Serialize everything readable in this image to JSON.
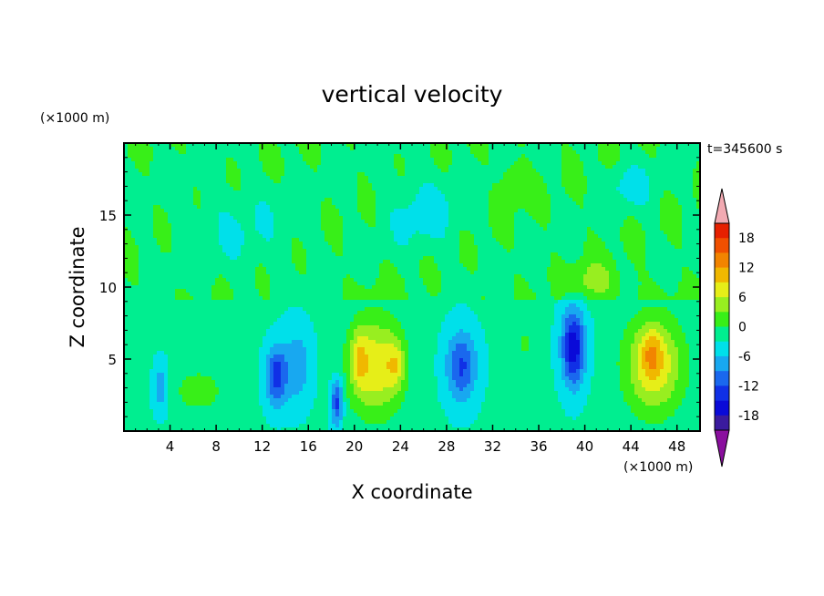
{
  "chart_data": {
    "type": "heatmap",
    "title": "vertical velocity",
    "xlabel": "X coordinate",
    "ylabel": "Z coordinate",
    "x_unit": "(×1000 m)",
    "y_unit": "(×1000 m)",
    "annotation": "t=345600 s",
    "xlim": [
      0,
      50
    ],
    "ylim": [
      0,
      20
    ],
    "x_ticks": [
      4,
      8,
      12,
      16,
      20,
      24,
      28,
      32,
      36,
      40,
      44,
      48
    ],
    "y_ticks": [
      5,
      10,
      15
    ],
    "grid": false,
    "legend": "right",
    "colorbar": {
      "levels": [
        -21,
        -18,
        -15,
        -12,
        -9,
        -6,
        -3,
        0,
        3,
        6,
        9,
        12,
        15,
        18,
        21
      ],
      "tick_labels": [
        18,
        12,
        6,
        0,
        -6,
        -12,
        -18
      ],
      "colors": [
        "#8a0f9e",
        "#3a1b9e",
        "#0a0ad8",
        "#1030e6",
        "#1a68ee",
        "#18a8f0",
        "#00e0ea",
        "#00ee90",
        "#38ef18",
        "#98ee20",
        "#e6ee18",
        "#f0b800",
        "#f28400",
        "#f05000",
        "#e62000",
        "#f2aab2"
      ],
      "extend": "both"
    },
    "features": [
      {
        "x": 3.2,
        "z": 3.0,
        "sx": 0.6,
        "sz": 1.6,
        "w": -6
      },
      {
        "x": 6.5,
        "z": 2.8,
        "sx": 2.0,
        "sz": 1.4,
        "w": 5
      },
      {
        "x": 13.2,
        "z": 3.8,
        "sx": 0.9,
        "sz": 2.0,
        "w": -11
      },
      {
        "x": 15.0,
        "z": 4.5,
        "sx": 1.2,
        "sz": 2.5,
        "w": -6
      },
      {
        "x": 18.5,
        "z": 2.0,
        "sx": 0.5,
        "sz": 1.6,
        "w": -11
      },
      {
        "x": 21.8,
        "z": 4.5,
        "sx": 2.3,
        "sz": 3.4,
        "w": 11
      },
      {
        "x": 20.4,
        "z": 5.0,
        "sx": 0.7,
        "sz": 2.0,
        "w": 6
      },
      {
        "x": 23.6,
        "z": 4.6,
        "sx": 0.8,
        "sz": 1.8,
        "w": 6
      },
      {
        "x": 29.3,
        "z": 4.5,
        "sx": 1.3,
        "sz": 2.4,
        "w": -10
      },
      {
        "x": 34.8,
        "z": 6.0,
        "sx": 0.8,
        "sz": 1.6,
        "w": 3
      },
      {
        "x": 39.0,
        "z": 5.8,
        "sx": 1.0,
        "sz": 2.6,
        "w": -15
      },
      {
        "x": 40.8,
        "z": 10.4,
        "sx": 1.8,
        "sz": 1.3,
        "w": 5
      },
      {
        "x": 46.0,
        "z": 4.6,
        "sx": 2.6,
        "sz": 3.4,
        "w": 11
      },
      {
        "x": 45.8,
        "z": 5.4,
        "sx": 0.9,
        "sz": 1.6,
        "w": 6
      },
      {
        "x": 33.8,
        "z": 17.2,
        "sx": 1.0,
        "sz": 1.4,
        "w": 4
      },
      {
        "x": 26.0,
        "z": 15.2,
        "sx": 3.0,
        "sz": 2.6,
        "w": -4
      },
      {
        "x": 44.0,
        "z": 17.0,
        "sx": 2.0,
        "sz": 1.5,
        "w": -4
      },
      {
        "x": 10.0,
        "z": 14.0,
        "sx": 5.0,
        "sz": 3.0,
        "w": -2.5
      }
    ]
  }
}
